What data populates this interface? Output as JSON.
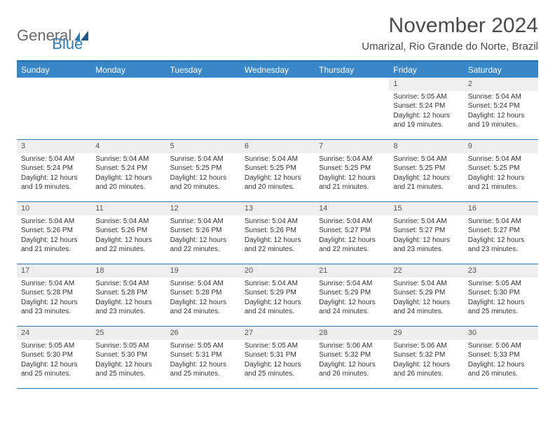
{
  "logo": {
    "text1": "General",
    "text2": "Blue"
  },
  "title": "November 2024",
  "location": "Umarizal, Rio Grande do Norte, Brazil",
  "colors": {
    "header_bg": "#3a87c7",
    "border": "#2a7ab9",
    "daynum_bg": "#eeeeee",
    "text": "#333333",
    "logo_gray": "#6a6a6a",
    "logo_blue": "#2a7ab9"
  },
  "weekdays": [
    "Sunday",
    "Monday",
    "Tuesday",
    "Wednesday",
    "Thursday",
    "Friday",
    "Saturday"
  ],
  "weeks": [
    [
      {
        "n": "",
        "sr": "",
        "ss": "",
        "dl": ""
      },
      {
        "n": "",
        "sr": "",
        "ss": "",
        "dl": ""
      },
      {
        "n": "",
        "sr": "",
        "ss": "",
        "dl": ""
      },
      {
        "n": "",
        "sr": "",
        "ss": "",
        "dl": ""
      },
      {
        "n": "",
        "sr": "",
        "ss": "",
        "dl": ""
      },
      {
        "n": "1",
        "sr": "Sunrise: 5:05 AM",
        "ss": "Sunset: 5:24 PM",
        "dl": "Daylight: 12 hours and 19 minutes."
      },
      {
        "n": "2",
        "sr": "Sunrise: 5:04 AM",
        "ss": "Sunset: 5:24 PM",
        "dl": "Daylight: 12 hours and 19 minutes."
      }
    ],
    [
      {
        "n": "3",
        "sr": "Sunrise: 5:04 AM",
        "ss": "Sunset: 5:24 PM",
        "dl": "Daylight: 12 hours and 19 minutes."
      },
      {
        "n": "4",
        "sr": "Sunrise: 5:04 AM",
        "ss": "Sunset: 5:24 PM",
        "dl": "Daylight: 12 hours and 20 minutes."
      },
      {
        "n": "5",
        "sr": "Sunrise: 5:04 AM",
        "ss": "Sunset: 5:25 PM",
        "dl": "Daylight: 12 hours and 20 minutes."
      },
      {
        "n": "6",
        "sr": "Sunrise: 5:04 AM",
        "ss": "Sunset: 5:25 PM",
        "dl": "Daylight: 12 hours and 20 minutes."
      },
      {
        "n": "7",
        "sr": "Sunrise: 5:04 AM",
        "ss": "Sunset: 5:25 PM",
        "dl": "Daylight: 12 hours and 21 minutes."
      },
      {
        "n": "8",
        "sr": "Sunrise: 5:04 AM",
        "ss": "Sunset: 5:25 PM",
        "dl": "Daylight: 12 hours and 21 minutes."
      },
      {
        "n": "9",
        "sr": "Sunrise: 5:04 AM",
        "ss": "Sunset: 5:25 PM",
        "dl": "Daylight: 12 hours and 21 minutes."
      }
    ],
    [
      {
        "n": "10",
        "sr": "Sunrise: 5:04 AM",
        "ss": "Sunset: 5:26 PM",
        "dl": "Daylight: 12 hours and 21 minutes."
      },
      {
        "n": "11",
        "sr": "Sunrise: 5:04 AM",
        "ss": "Sunset: 5:26 PM",
        "dl": "Daylight: 12 hours and 22 minutes."
      },
      {
        "n": "12",
        "sr": "Sunrise: 5:04 AM",
        "ss": "Sunset: 5:26 PM",
        "dl": "Daylight: 12 hours and 22 minutes."
      },
      {
        "n": "13",
        "sr": "Sunrise: 5:04 AM",
        "ss": "Sunset: 5:26 PM",
        "dl": "Daylight: 12 hours and 22 minutes."
      },
      {
        "n": "14",
        "sr": "Sunrise: 5:04 AM",
        "ss": "Sunset: 5:27 PM",
        "dl": "Daylight: 12 hours and 22 minutes."
      },
      {
        "n": "15",
        "sr": "Sunrise: 5:04 AM",
        "ss": "Sunset: 5:27 PM",
        "dl": "Daylight: 12 hours and 23 minutes."
      },
      {
        "n": "16",
        "sr": "Sunrise: 5:04 AM",
        "ss": "Sunset: 5:27 PM",
        "dl": "Daylight: 12 hours and 23 minutes."
      }
    ],
    [
      {
        "n": "17",
        "sr": "Sunrise: 5:04 AM",
        "ss": "Sunset: 5:28 PM",
        "dl": "Daylight: 12 hours and 23 minutes."
      },
      {
        "n": "18",
        "sr": "Sunrise: 5:04 AM",
        "ss": "Sunset: 5:28 PM",
        "dl": "Daylight: 12 hours and 23 minutes."
      },
      {
        "n": "19",
        "sr": "Sunrise: 5:04 AM",
        "ss": "Sunset: 5:28 PM",
        "dl": "Daylight: 12 hours and 24 minutes."
      },
      {
        "n": "20",
        "sr": "Sunrise: 5:04 AM",
        "ss": "Sunset: 5:29 PM",
        "dl": "Daylight: 12 hours and 24 minutes."
      },
      {
        "n": "21",
        "sr": "Sunrise: 5:04 AM",
        "ss": "Sunset: 5:29 PM",
        "dl": "Daylight: 12 hours and 24 minutes."
      },
      {
        "n": "22",
        "sr": "Sunrise: 5:04 AM",
        "ss": "Sunset: 5:29 PM",
        "dl": "Daylight: 12 hours and 24 minutes."
      },
      {
        "n": "23",
        "sr": "Sunrise: 5:05 AM",
        "ss": "Sunset: 5:30 PM",
        "dl": "Daylight: 12 hours and 25 minutes."
      }
    ],
    [
      {
        "n": "24",
        "sr": "Sunrise: 5:05 AM",
        "ss": "Sunset: 5:30 PM",
        "dl": "Daylight: 12 hours and 25 minutes."
      },
      {
        "n": "25",
        "sr": "Sunrise: 5:05 AM",
        "ss": "Sunset: 5:30 PM",
        "dl": "Daylight: 12 hours and 25 minutes."
      },
      {
        "n": "26",
        "sr": "Sunrise: 5:05 AM",
        "ss": "Sunset: 5:31 PM",
        "dl": "Daylight: 12 hours and 25 minutes."
      },
      {
        "n": "27",
        "sr": "Sunrise: 5:05 AM",
        "ss": "Sunset: 5:31 PM",
        "dl": "Daylight: 12 hours and 25 minutes."
      },
      {
        "n": "28",
        "sr": "Sunrise: 5:06 AM",
        "ss": "Sunset: 5:32 PM",
        "dl": "Daylight: 12 hours and 26 minutes."
      },
      {
        "n": "29",
        "sr": "Sunrise: 5:06 AM",
        "ss": "Sunset: 5:32 PM",
        "dl": "Daylight: 12 hours and 26 minutes."
      },
      {
        "n": "30",
        "sr": "Sunrise: 5:06 AM",
        "ss": "Sunset: 5:33 PM",
        "dl": "Daylight: 12 hours and 26 minutes."
      }
    ]
  ]
}
